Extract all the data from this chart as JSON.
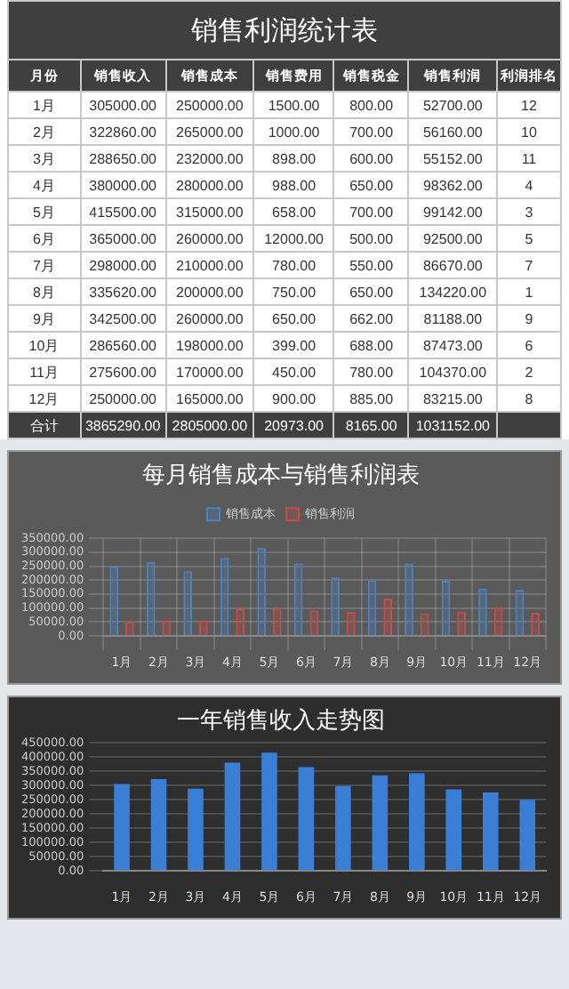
{
  "chart_data": [
    {
      "type": "heatmap",
      "title": "销售利润统计表",
      "ylabel": "月份",
      "categories": [
        "销售收入",
        "销售成本",
        "销售费用",
        "销售税金",
        "销售利润",
        "利润排名"
      ],
      "y_categories": [
        "1月",
        "2月",
        "3月",
        "4月",
        "5月",
        "6月",
        "7月",
        "8月",
        "9月",
        "10月",
        "11月",
        "12月",
        "合计"
      ],
      "cells": [
        [
          305000,
          250000,
          1500,
          800,
          52700,
          12
        ],
        [
          322860,
          265000,
          1000,
          700,
          56160,
          10
        ],
        [
          288650,
          232000,
          898,
          600,
          55152,
          11
        ],
        [
          380000,
          280000,
          988,
          650,
          98362,
          4
        ],
        [
          415500,
          315000,
          658,
          700,
          99142,
          3
        ],
        [
          365000,
          260000,
          12000,
          500,
          92500,
          5
        ],
        [
          298000,
          210000,
          780,
          550,
          86670,
          7
        ],
        [
          335620,
          200000,
          750,
          650,
          134220,
          1
        ],
        [
          342500,
          260000,
          650,
          662,
          81188,
          9
        ],
        [
          286560,
          198000,
          399,
          688,
          87473,
          6
        ],
        [
          275600,
          170000,
          450,
          780,
          104370,
          2
        ],
        [
          250000,
          165000,
          900,
          885,
          83215,
          8
        ],
        [
          3865290,
          2805000,
          20973,
          8165,
          1031152,
          null
        ]
      ],
      "cell_labels": [
        [
          "305000.00",
          "250000.00",
          "1500.00",
          "800.00",
          "52700.00",
          "12"
        ],
        [
          "322860.00",
          "265000.00",
          "1000.00",
          "700.00",
          "56160.00",
          "10"
        ],
        [
          "288650.00",
          "232000.00",
          "898.00",
          "600.00",
          "55152.00",
          "11"
        ],
        [
          "380000.00",
          "280000.00",
          "988.00",
          "650.00",
          "98362.00",
          "4"
        ],
        [
          "415500.00",
          "315000.00",
          "658.00",
          "700.00",
          "99142.00",
          "3"
        ],
        [
          "365000.00",
          "260000.00",
          "12000.00",
          "500.00",
          "92500.00",
          "5"
        ],
        [
          "298000.00",
          "210000.00",
          "780.00",
          "550.00",
          "86670.00",
          "7"
        ],
        [
          "335620.00",
          "200000.00",
          "750.00",
          "650.00",
          "134220.00",
          "1"
        ],
        [
          "342500.00",
          "260000.00",
          "650.00",
          "662.00",
          "81188.00",
          "9"
        ],
        [
          "286560.00",
          "198000.00",
          "399.00",
          "688.00",
          "87473.00",
          "6"
        ],
        [
          "275600.00",
          "170000.00",
          "450.00",
          "780.00",
          "104370.00",
          "2"
        ],
        [
          "250000.00",
          "165000.00",
          "900.00",
          "885.00",
          "83215.00",
          "8"
        ],
        [
          "3865290.00",
          "2805000.00",
          "20973.00",
          "8165.00",
          "1031152.00",
          null
        ]
      ]
    },
    {
      "type": "bar",
      "title": "每月销售成本与销售利润表",
      "categories": [
        "1月",
        "2月",
        "3月",
        "4月",
        "5月",
        "6月",
        "7月",
        "8月",
        "9月",
        "10月",
        "11月",
        "12月"
      ],
      "series": [
        {
          "name": "销售成本",
          "color": "#4f81bd",
          "values": [
            250000,
            265000,
            232000,
            280000,
            315000,
            260000,
            210000,
            200000,
            260000,
            198000,
            170000,
            165000
          ]
        },
        {
          "name": "销售利润",
          "color": "#c0504d",
          "values": [
            52700,
            56160,
            55152,
            98362,
            99142,
            92500,
            86670,
            134220,
            81188,
            87473,
            104370,
            83215
          ]
        }
      ],
      "ylim": [
        0,
        350000
      ],
      "yticks": [
        {
          "value": 0,
          "label": "0.00"
        },
        {
          "value": 50000,
          "label": "50000.00"
        },
        {
          "value": 100000,
          "label": "100000.00"
        },
        {
          "value": 150000,
          "label": "150000.00"
        },
        {
          "value": 200000,
          "label": "200000.00"
        },
        {
          "value": 250000,
          "label": "250000.00"
        },
        {
          "value": 300000,
          "label": "300000.00"
        },
        {
          "value": 350000,
          "label": "350000.00"
        }
      ],
      "grid": true,
      "legend": "top"
    },
    {
      "type": "bar",
      "title": "一年销售收入走势图",
      "categories": [
        "1月",
        "2月",
        "3月",
        "4月",
        "5月",
        "6月",
        "7月",
        "8月",
        "9月",
        "10月",
        "11月",
        "12月"
      ],
      "series": [
        {
          "color": "#3a7fd5",
          "values": [
            305000,
            322860,
            288650,
            380000,
            415500,
            365000,
            298000,
            335620,
            342500,
            286560,
            275600,
            250000
          ]
        }
      ],
      "ylim": [
        0,
        450000
      ],
      "yticks": [
        {
          "value": 0,
          "label": "0.00"
        },
        {
          "value": 50000,
          "label": "50000.00"
        },
        {
          "value": 100000,
          "label": "100000.00"
        },
        {
          "value": 150000,
          "label": "150000.00"
        },
        {
          "value": 200000,
          "label": "200000.00"
        },
        {
          "value": 250000,
          "label": "250000.00"
        },
        {
          "value": 300000,
          "label": "300000.00"
        },
        {
          "value": 350000,
          "label": "350000.00"
        },
        {
          "value": 400000,
          "label": "400000.00"
        },
        {
          "value": 450000,
          "label": "450000.00"
        }
      ],
      "grid": "y"
    }
  ]
}
